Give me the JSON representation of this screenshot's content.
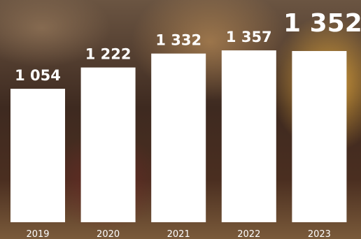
{
  "chart_data": {
    "type": "bar",
    "categories": [
      "2019",
      "2020",
      "2021",
      "2022",
      "2023"
    ],
    "values": [
      1054,
      1222,
      1332,
      1357,
      1352
    ],
    "value_labels": [
      "1 054",
      "1 222",
      "1 332",
      "1 357",
      "1 352"
    ],
    "color": "#ffffff"
  }
}
